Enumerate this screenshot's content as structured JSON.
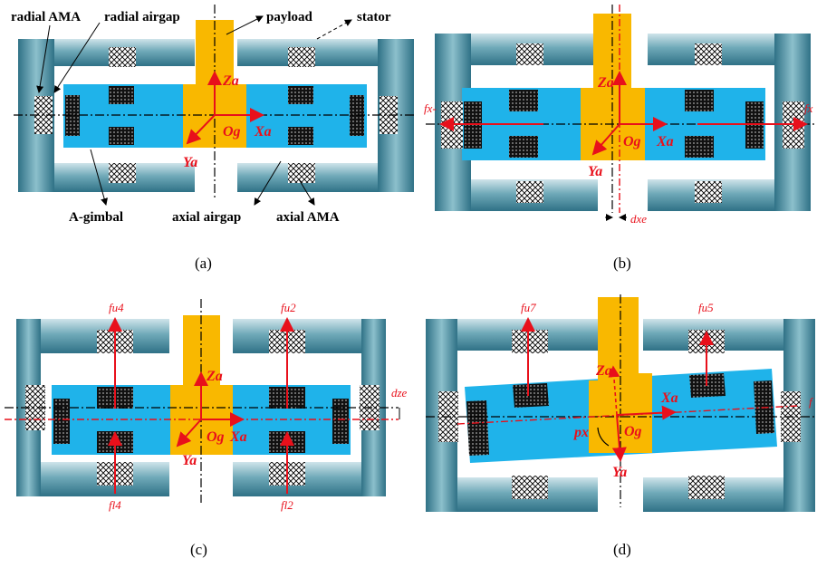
{
  "labels": {
    "radial_ama": "radial AMA",
    "radial_airgap": "radial airgap",
    "payload": "payload",
    "stator": "stator",
    "a_gimbal": "A-gimbal",
    "axial_airgap": "axial airgap",
    "axial_ama": "axial AMA"
  },
  "axes": {
    "z": "Za",
    "y": "Ya",
    "x": "Xa",
    "o": "Og"
  },
  "forces": {
    "fx_left": "fx-",
    "fx_right": "fx",
    "dxe": "dxe",
    "dze": "dze",
    "px": "px",
    "fu4": "fu4",
    "fu2": "fu2",
    "fl4": "fl4",
    "fl2": "fl2",
    "fu7": "fu7",
    "fu5": "fu5",
    "f_right": "f"
  },
  "captions": [
    "(a)",
    "(b)",
    "(c)",
    "(d)"
  ],
  "colors": {
    "stator": "#5f9ea0",
    "gimbal": "#1fb3ea",
    "payload": "#f9b800",
    "axis": "#e8101b"
  }
}
